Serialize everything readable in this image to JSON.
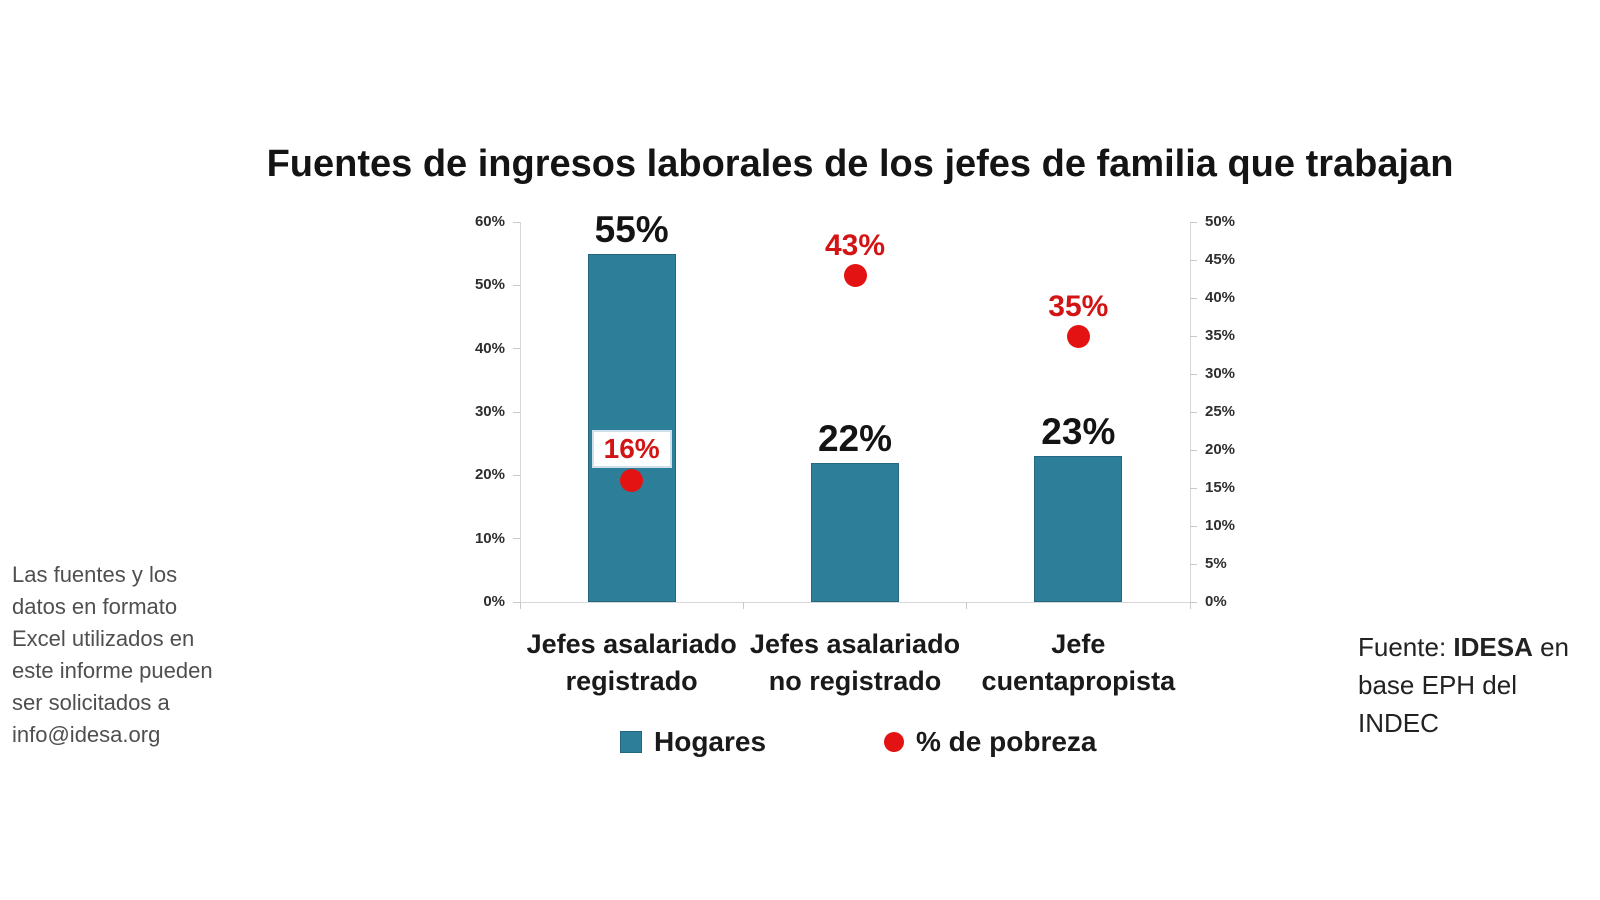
{
  "title": "Fuentes de ingresos laborales de los jefes de familia que trabajan",
  "chart_data": {
    "type": "combo",
    "categories": [
      "Jefes asalariado\nregistrado",
      "Jefes asalariado\nno registrado",
      "Jefe\ncuentapropista"
    ],
    "series": [
      {
        "name": "Hogares",
        "type": "bar",
        "axis": "left",
        "values": [
          55,
          22,
          23
        ],
        "labels": [
          "55%",
          "22%",
          "23%"
        ],
        "color": "#2d7e99"
      },
      {
        "name": "% de pobreza",
        "type": "scatter",
        "axis": "right",
        "values": [
          16,
          43,
          35
        ],
        "labels": [
          "16%",
          "43%",
          "35%"
        ],
        "boxed": [
          true,
          false,
          false
        ],
        "color": "#e41313"
      }
    ],
    "left_axis": {
      "min": 0,
      "max": 60,
      "ticks": [
        "0%",
        "10%",
        "20%",
        "30%",
        "40%",
        "50%",
        "60%"
      ]
    },
    "right_axis": {
      "min": 0,
      "max": 50,
      "ticks": [
        "0%",
        "5%",
        "10%",
        "15%",
        "20%",
        "25%",
        "30%",
        "35%",
        "40%",
        "45%",
        "50%"
      ]
    },
    "grid": false,
    "legend": [
      {
        "label": "Hogares",
        "marker": "square-icon",
        "color": "#2d7e99"
      },
      {
        "label": "% de pobreza",
        "marker": "circle-icon",
        "color": "#e41313"
      }
    ]
  },
  "notes": {
    "left": "Las fuentes y los\ndatos en formato\nExcel utilizados en\neste informe pueden\nser solicitados a\ninfo@idesa.org"
  },
  "source": {
    "prefix": "Fuente: ",
    "bold": "IDESA",
    "suffix": " en",
    "line2": "base EPH del",
    "line3": "INDEC"
  }
}
